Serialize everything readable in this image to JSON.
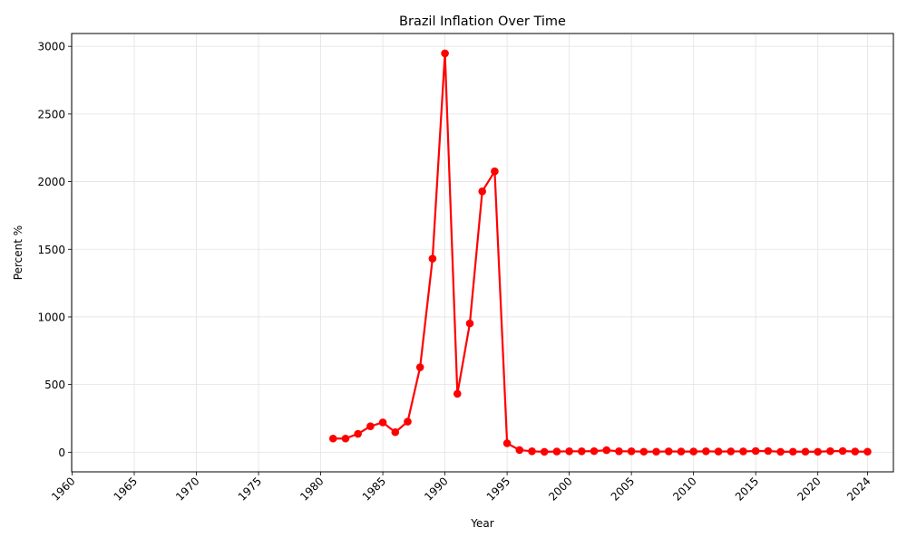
{
  "chart_data": {
    "type": "line",
    "title": "Brazil Inflation Over Time",
    "xlabel": "Year",
    "ylabel": "Percent %",
    "xlim": [
      1960,
      2024
    ],
    "ylim": [
      -145,
      3095
    ],
    "x_ticks": [
      1960,
      1965,
      1970,
      1975,
      1980,
      1985,
      1990,
      1995,
      2000,
      2005,
      2010,
      2015,
      2020,
      2024
    ],
    "y_ticks": [
      0,
      500,
      1000,
      1500,
      2000,
      2500,
      3000
    ],
    "grid": true,
    "series": [
      {
        "color": "#ff0000",
        "marker": "circle",
        "x": [
          1981,
          1982,
          1983,
          1984,
          1985,
          1986,
          1987,
          1988,
          1989,
          1990,
          1991,
          1992,
          1993,
          1994,
          1995,
          1996,
          1997,
          1998,
          1999,
          2000,
          2001,
          2002,
          2003,
          2004,
          2005,
          2006,
          2007,
          2008,
          2009,
          2010,
          2011,
          2012,
          2013,
          2014,
          2015,
          2016,
          2017,
          2018,
          2019,
          2020,
          2021,
          2022,
          2023,
          2024
        ],
        "y": [
          101,
          101,
          136,
          192,
          220,
          148,
          226,
          628,
          1431,
          2948,
          432,
          952,
          1928,
          2076,
          66,
          16,
          7,
          3,
          5,
          7,
          7,
          8,
          15,
          7,
          7,
          4,
          4,
          6,
          5,
          5,
          7,
          5,
          6,
          6,
          9,
          9,
          3,
          4,
          4,
          3,
          8,
          9,
          5,
          4
        ]
      }
    ]
  }
}
